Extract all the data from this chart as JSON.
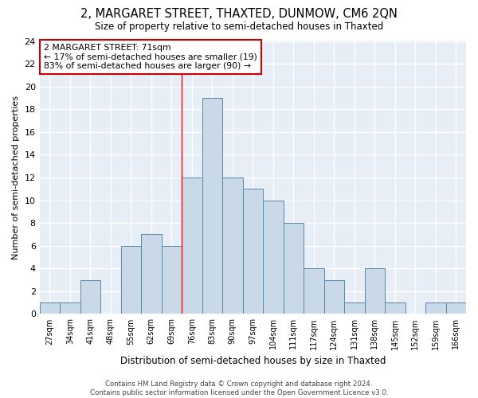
{
  "title": "2, MARGARET STREET, THAXTED, DUNMOW, CM6 2QN",
  "subtitle": "Size of property relative to semi-detached houses in Thaxted",
  "xlabel": "Distribution of semi-detached houses by size in Thaxted",
  "ylabel": "Number of semi-detached properties",
  "bins": [
    "27sqm",
    "34sqm",
    "41sqm",
    "48sqm",
    "55sqm",
    "62sqm",
    "69sqm",
    "76sqm",
    "83sqm",
    "90sqm",
    "97sqm",
    "104sqm",
    "111sqm",
    "117sqm",
    "124sqm",
    "131sqm",
    "138sqm",
    "145sqm",
    "152sqm",
    "159sqm",
    "166sqm"
  ],
  "values": [
    1,
    1,
    3,
    0,
    6,
    7,
    6,
    12,
    19,
    12,
    11,
    10,
    8,
    4,
    3,
    1,
    4,
    1,
    0,
    1,
    1
  ],
  "bar_color": "#c9d9e8",
  "bar_edge_color": "#5588aa",
  "background_color": "#e8eef6",
  "grid_color": "#ffffff",
  "red_line_x": 6.5,
  "annotation_text": "2 MARGARET STREET: 71sqm\n← 17% of semi-detached houses are smaller (19)\n83% of semi-detached houses are larger (90) →",
  "annotation_box_color": "#ffffff",
  "annotation_box_edge": "#cc0000",
  "footer": "Contains HM Land Registry data © Crown copyright and database right 2024.\nContains public sector information licensed under the Open Government Licence v3.0.",
  "ylim": [
    0,
    24
  ],
  "yticks": [
    0,
    2,
    4,
    6,
    8,
    10,
    12,
    14,
    16,
    18,
    20,
    22,
    24
  ]
}
